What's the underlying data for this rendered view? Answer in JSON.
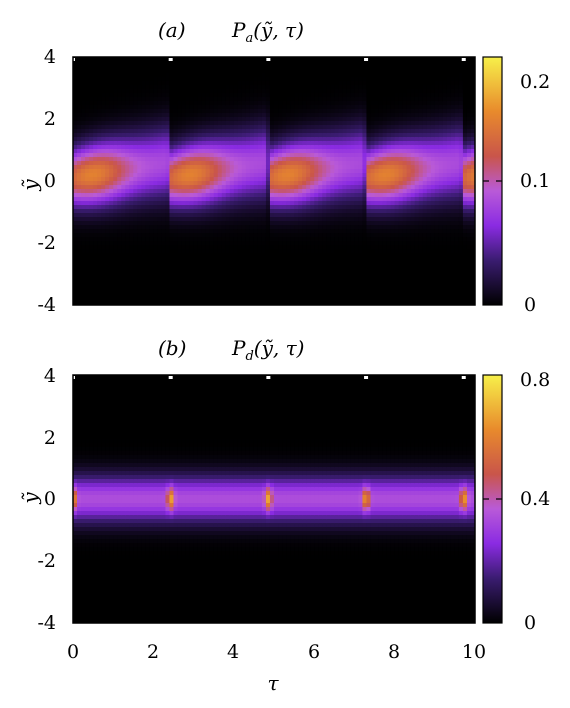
{
  "chart_data": [
    {
      "type": "heatmap",
      "panel_label": "(a)",
      "title_main": "P",
      "title_sub": "a",
      "title_args": "(ỹ, τ)",
      "xlabel": "",
      "ylabel": "ỹ",
      "xlim": [
        0,
        10
      ],
      "ylim": [
        -4,
        4
      ],
      "x_ticks": [],
      "y_ticks": [
        "4",
        "2",
        "0",
        "-2",
        "-4"
      ],
      "colorbar": {
        "range": [
          0,
          0.2
        ],
        "ticks": [
          "0.2",
          "0.1",
          "0"
        ]
      },
      "period": 2.43,
      "description_of_pattern": {
        "features": [
          {
            "x_start": 0.0,
            "x_end": 2.43,
            "peak_value": 0.15,
            "peak_y": 0.3
          },
          {
            "x_start": 2.43,
            "x_end": 4.86,
            "peak_value": 0.15,
            "peak_y": 0.3
          },
          {
            "x_start": 4.86,
            "x_end": 7.29,
            "peak_value": 0.15,
            "peak_y": 0.3
          },
          {
            "x_start": 7.29,
            "x_end": 9.72,
            "peak_value": 0.15,
            "peak_y": 0.3
          }
        ]
      }
    },
    {
      "type": "heatmap",
      "panel_label": "(b)",
      "title_main": "P",
      "title_sub": "d",
      "title_args": "(ỹ, τ)",
      "xlabel": "τ",
      "ylabel": "ỹ",
      "xlim": [
        0,
        10
      ],
      "ylim": [
        -4,
        4
      ],
      "x_ticks": [
        "0",
        "2",
        "4",
        "6",
        "8",
        "10"
      ],
      "y_ticks": [
        "4",
        "2",
        "0",
        "-2",
        "-4"
      ],
      "colorbar": {
        "range": [
          0,
          0.8
        ],
        "ticks": [
          "0.8",
          "0.4",
          "0"
        ]
      },
      "period": 2.43,
      "description_of_pattern": {
        "features": [
          {
            "x": 0.0,
            "peak_value": 0.45,
            "peak_y": 0.0
          },
          {
            "x": 2.43,
            "peak_value": 0.45,
            "peak_y": 0.0
          },
          {
            "x": 4.86,
            "peak_value": 0.45,
            "peak_y": 0.0
          },
          {
            "x": 7.29,
            "peak_value": 0.45,
            "peak_y": 0.0
          },
          {
            "x": 9.72,
            "peak_value": 0.45,
            "peak_y": 0.0
          }
        ]
      }
    }
  ]
}
